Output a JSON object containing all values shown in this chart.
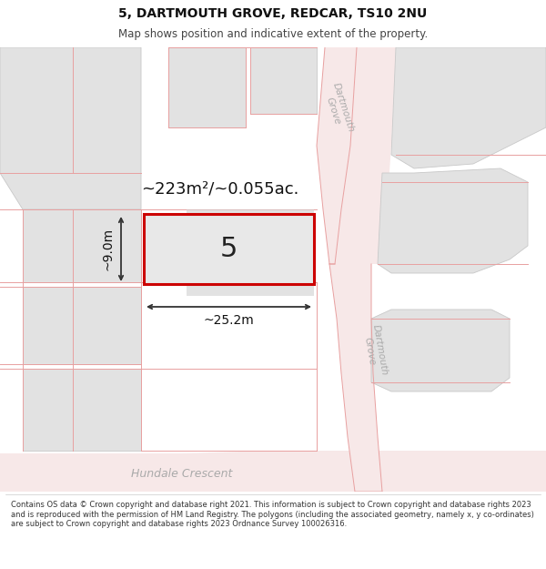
{
  "title": "5, DARTMOUTH GROVE, REDCAR, TS10 2NU",
  "subtitle": "Map shows position and indicative extent of the property.",
  "footer": "Contains OS data © Crown copyright and database right 2021. This information is subject to Crown copyright and database rights 2023 and is reproduced with the permission of HM Land Registry. The polygons (including the associated geometry, namely x, y co-ordinates) are subject to Crown copyright and database rights 2023 Ordnance Survey 100026316.",
  "area_label": "~223m²/~0.055ac.",
  "width_label": "~25.2m",
  "height_label": "~9.0m",
  "plot_number": "5",
  "bg_color": "#ffffff",
  "building_fill": "#e2e2e2",
  "building_edge": "#c8c8c8",
  "road_fill": "#f7e8e8",
  "road_edge": "#e8b8b8",
  "boundary_color": "#e8a0a0",
  "plot_outline_color": "#cc0000",
  "plot_fill": "#e8e8e8",
  "dimension_color": "#333333",
  "street_label_color": "#aaaaaa",
  "title_fontsize": 10,
  "subtitle_fontsize": 8.5
}
